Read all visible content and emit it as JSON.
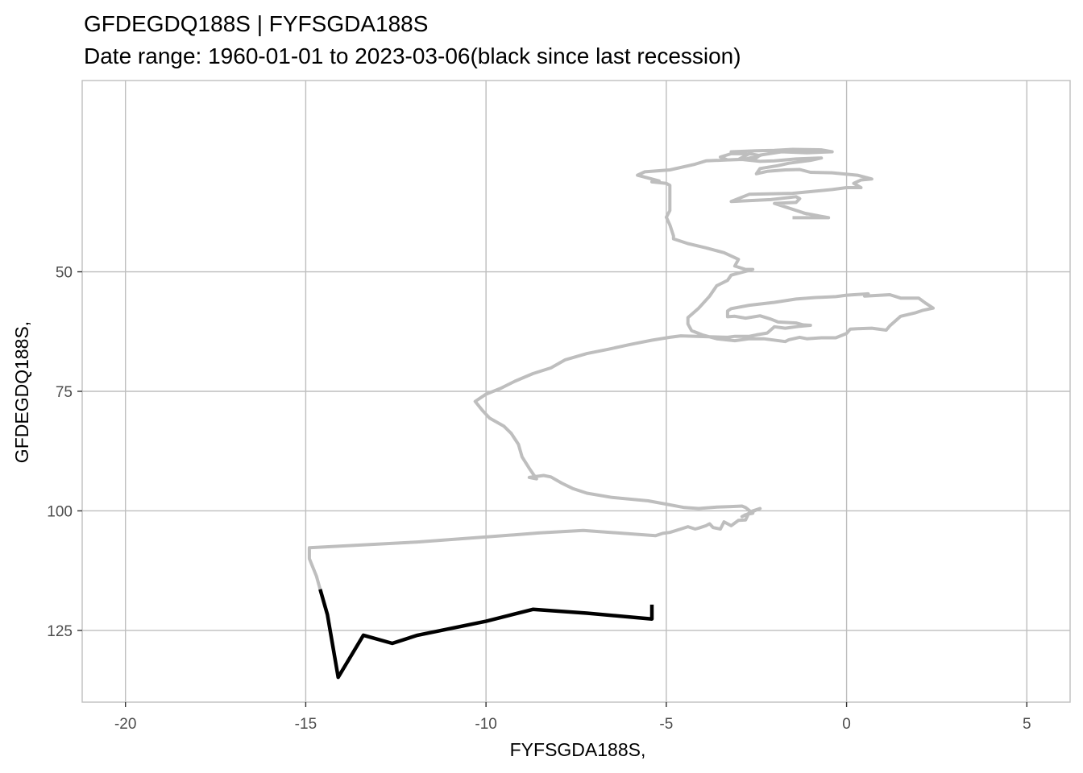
{
  "chart_data": {
    "type": "line",
    "title": "GFDEGDQ188S  |  FYFSGDA188S",
    "subtitle": "Date range: 1960-01-01 to 2023-03-06(black since last recession)",
    "xlabel": "FYFSGDA188S,",
    "ylabel": "GFDEGDQ188S,",
    "xlim": [
      -21.2,
      6.2
    ],
    "ylim": [
      140,
      10
    ],
    "y_axis_reversed": true,
    "grid": true,
    "x_ticks": [
      -20,
      -15,
      -10,
      -5,
      0,
      5
    ],
    "y_ticks": [
      50,
      75,
      100,
      125
    ],
    "colors": {
      "history": "#bebebe",
      "recent": "#000000",
      "grid": "#bebebe",
      "panel_border": "#bebebe"
    },
    "series": [
      {
        "role": "before last recession",
        "color": "#bebebe",
        "points": [
          [
            -1.5,
            38.7
          ],
          [
            -0.5,
            38.7
          ],
          [
            -1.2,
            37.7
          ],
          [
            -1.1,
            37.9
          ],
          [
            -2.0,
            35.7
          ],
          [
            -1.4,
            35.5
          ],
          [
            -1.3,
            34.7
          ],
          [
            -1.4,
            34.3
          ],
          [
            -2.1,
            34.9
          ],
          [
            -3.2,
            35.3
          ],
          [
            -2.7,
            33.8
          ],
          [
            -1.5,
            33.6
          ],
          [
            -0.4,
            32.8
          ],
          [
            0.0,
            32.4
          ],
          [
            0.4,
            32.4
          ],
          [
            0.2,
            31.5
          ],
          [
            0.4,
            30.8
          ],
          [
            0.7,
            30.6
          ],
          [
            0.3,
            29.8
          ],
          [
            -0.4,
            29.3
          ],
          [
            -1.0,
            29.2
          ],
          [
            -1.3,
            28.6
          ],
          [
            -1.7,
            28.7
          ],
          [
            -2.2,
            29.0
          ],
          [
            -2.5,
            29.5
          ],
          [
            -2.4,
            28.4
          ],
          [
            -1.9,
            27.8
          ],
          [
            -1.6,
            27.3
          ],
          [
            -1.0,
            26.7
          ],
          [
            -0.7,
            26.2
          ],
          [
            -1.4,
            26.4
          ],
          [
            -2.0,
            26.8
          ],
          [
            -2.4,
            26.9
          ],
          [
            -2.9,
            26.5
          ],
          [
            -3.3,
            26.6
          ],
          [
            -3.5,
            26.0
          ],
          [
            -3.2,
            25.3
          ],
          [
            -2.8,
            25.3
          ],
          [
            -3.2,
            24.9
          ],
          [
            -2.5,
            24.7
          ],
          [
            -2.0,
            24.6
          ],
          [
            -1.5,
            24.4
          ],
          [
            -0.7,
            24.5
          ],
          [
            -0.4,
            24.9
          ],
          [
            -1.1,
            25.1
          ],
          [
            -1.8,
            24.9
          ],
          [
            -2.4,
            25.6
          ],
          [
            -2.6,
            26.7
          ],
          [
            -2.8,
            26.4
          ],
          [
            -2.4,
            25.7
          ],
          [
            -2.7,
            25.3
          ],
          [
            -3.0,
            26.5
          ],
          [
            -3.9,
            26.8
          ],
          [
            -4.2,
            27.5
          ],
          [
            -4.9,
            28.7
          ],
          [
            -5.6,
            29.1
          ],
          [
            -5.8,
            29.8
          ],
          [
            -5.2,
            31.0
          ],
          [
            -5.4,
            31.2
          ],
          [
            -5.0,
            31.5
          ],
          [
            -4.9,
            31.9
          ],
          [
            -4.9,
            34.2
          ],
          [
            -4.9,
            35.1
          ],
          [
            -4.9,
            37.2
          ],
          [
            -5.0,
            38.6
          ],
          [
            -4.9,
            40.2
          ],
          [
            -4.8,
            42.5
          ],
          [
            -4.8,
            43.1
          ],
          [
            -4.4,
            44.1
          ],
          [
            -3.9,
            45.0
          ],
          [
            -3.4,
            46.0
          ],
          [
            -3.0,
            47.4
          ],
          [
            -3.1,
            48.8
          ],
          [
            -2.8,
            49.5
          ],
          [
            -2.6,
            49.5
          ],
          [
            -2.8,
            49.9
          ],
          [
            -3.2,
            50.7
          ],
          [
            -3.3,
            51.8
          ],
          [
            -3.6,
            52.9
          ],
          [
            -3.8,
            55.1
          ],
          [
            -4.1,
            57.6
          ],
          [
            -4.4,
            59.6
          ],
          [
            -4.4,
            60.9
          ],
          [
            -4.3,
            62.3
          ],
          [
            -4.0,
            63.2
          ],
          [
            -3.6,
            64.0
          ],
          [
            -3.1,
            64.4
          ],
          [
            -2.7,
            64.0
          ],
          [
            -2.3,
            64.0
          ],
          [
            -1.7,
            64.6
          ],
          [
            -1.6,
            64.2
          ],
          [
            -1.3,
            63.7
          ],
          [
            -1.1,
            64.0
          ],
          [
            -0.7,
            63.8
          ],
          [
            -0.3,
            63.8
          ],
          [
            0.0,
            62.9
          ],
          [
            0.1,
            62.0
          ],
          [
            0.3,
            61.9
          ],
          [
            0.7,
            61.8
          ],
          [
            1.1,
            62.2
          ],
          [
            1.2,
            61.3
          ],
          [
            1.5,
            59.3
          ],
          [
            1.9,
            58.6
          ],
          [
            2.1,
            58.1
          ],
          [
            2.4,
            57.6
          ],
          [
            2.2,
            56.6
          ],
          [
            2.0,
            55.5
          ],
          [
            1.5,
            55.5
          ],
          [
            1.2,
            54.8
          ],
          [
            0.5,
            55.1
          ],
          [
            0.6,
            54.6
          ],
          [
            0.0,
            54.9
          ],
          [
            -0.3,
            55.2
          ],
          [
            -0.9,
            55.4
          ],
          [
            -1.4,
            55.7
          ],
          [
            -2.0,
            56.4
          ],
          [
            -2.7,
            57.0
          ],
          [
            -3.2,
            57.7
          ],
          [
            -3.3,
            58.2
          ],
          [
            -3.3,
            59.4
          ],
          [
            -3.1,
            59.3
          ],
          [
            -2.8,
            59.7
          ],
          [
            -2.4,
            59.2
          ],
          [
            -2.1,
            59.9
          ],
          [
            -1.9,
            60.5
          ],
          [
            -1.4,
            60.7
          ],
          [
            -1.2,
            61.1
          ],
          [
            -1.0,
            61.2
          ],
          [
            -1.3,
            61.4
          ],
          [
            -1.7,
            61.8
          ],
          [
            -2.0,
            61.5
          ],
          [
            -2.2,
            62.8
          ],
          [
            -2.5,
            63.2
          ],
          [
            -2.7,
            63.5
          ],
          [
            -3.1,
            63.5
          ],
          [
            -3.3,
            63.7
          ],
          [
            -3.8,
            63.6
          ],
          [
            -4.6,
            63.4
          ],
          [
            -4.9,
            63.7
          ],
          [
            -5.4,
            64.3
          ],
          [
            -6.0,
            65.2
          ],
          [
            -6.6,
            66.2
          ],
          [
            -7.2,
            67.1
          ],
          [
            -7.8,
            68.4
          ],
          [
            -8.2,
            70.1
          ],
          [
            -8.7,
            71.3
          ],
          [
            -9.2,
            72.9
          ],
          [
            -9.6,
            74.4
          ],
          [
            -10.0,
            75.6
          ],
          [
            -10.3,
            77.1
          ],
          [
            -10.1,
            79.0
          ],
          [
            -9.9,
            80.6
          ],
          [
            -9.5,
            82.3
          ],
          [
            -9.3,
            83.8
          ],
          [
            -9.1,
            86.1
          ],
          [
            -9.0,
            88.7
          ],
          [
            -8.8,
            91.1
          ],
          [
            -8.6,
            93.3
          ],
          [
            -8.8,
            93.0
          ],
          [
            -8.4,
            92.6
          ],
          [
            -8.2,
            92.9
          ],
          [
            -7.9,
            94.2
          ],
          [
            -7.6,
            95.3
          ],
          [
            -7.2,
            96.3
          ],
          [
            -6.5,
            97.2
          ],
          [
            -5.5,
            97.9
          ],
          [
            -5.0,
            98.6
          ],
          [
            -4.5,
            99.3
          ],
          [
            -4.1,
            99.5
          ],
          [
            -3.6,
            99.2
          ],
          [
            -3.2,
            99.1
          ],
          [
            -2.9,
            99.0
          ],
          [
            -2.8,
            99.3
          ],
          [
            -2.6,
            100.5
          ],
          [
            -2.8,
            100.8
          ],
          [
            -2.9,
            101.2
          ],
          [
            -2.7,
            100.5
          ],
          [
            -2.5,
            99.8
          ],
          [
            -2.4,
            99.5
          ],
          [
            -2.6,
            100.0
          ],
          [
            -2.7,
            100.3
          ],
          [
            -2.8,
            101.9
          ],
          [
            -3.0,
            102.0
          ],
          [
            -3.2,
            103.1
          ],
          [
            -3.4,
            102.3
          ],
          [
            -3.5,
            103.8
          ],
          [
            -3.7,
            103.5
          ],
          [
            -3.8,
            102.7
          ],
          [
            -3.9,
            103.1
          ],
          [
            -4.1,
            103.6
          ],
          [
            -4.2,
            103.8
          ],
          [
            -4.4,
            103.3
          ],
          [
            -4.6,
            103.8
          ],
          [
            -4.9,
            104.5
          ],
          [
            -5.1,
            104.7
          ],
          [
            -5.3,
            105.2
          ],
          [
            -5.8,
            104.9
          ],
          [
            -7.3,
            104.1
          ],
          [
            -8.5,
            104.6
          ],
          [
            -9.9,
            105.4
          ],
          [
            -11.9,
            106.5
          ],
          [
            -14.9,
            107.7
          ],
          [
            -14.9,
            110.0
          ],
          [
            -14.7,
            113.7
          ],
          [
            -14.6,
            116.4
          ]
        ]
      },
      {
        "role": "since last recession",
        "color": "#000000",
        "points": [
          [
            -14.6,
            116.4
          ],
          [
            -14.4,
            121.7
          ],
          [
            -14.1,
            134.8
          ],
          [
            -13.4,
            126.0
          ],
          [
            -12.6,
            127.7
          ],
          [
            -11.9,
            126.0
          ],
          [
            -10.0,
            123.1
          ],
          [
            -8.7,
            120.6
          ],
          [
            -7.2,
            121.4
          ],
          [
            -5.4,
            122.6
          ],
          [
            -5.4,
            119.6
          ]
        ]
      }
    ]
  }
}
